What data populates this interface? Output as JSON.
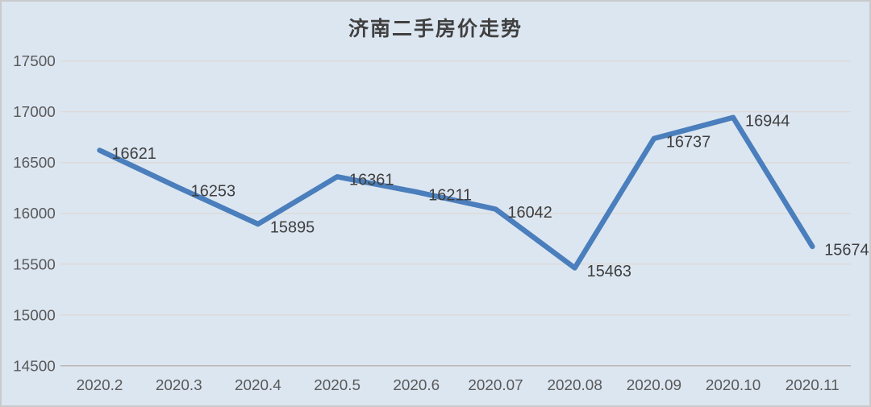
{
  "window": {
    "background_color": "#dce6f1",
    "border_color": "#c9cacc"
  },
  "chart_data": {
    "type": "line",
    "title": "济南二手房价走势",
    "categories": [
      "2020.2",
      "2020.3",
      "2020.4",
      "2020.5",
      "2020.6",
      "2020.07",
      "2020.08",
      "2020.09",
      "2020.10",
      "2020.11"
    ],
    "series": [
      {
        "name": "济南二手房价",
        "values": [
          16621,
          16253,
          15895,
          16361,
          16211,
          16042,
          15463,
          16737,
          16944,
          15674
        ]
      }
    ],
    "data_labels": [
      "16621",
      "16253",
      "15895",
      "16361",
      "16211",
      "16042",
      "15463",
      "16737",
      "16944",
      "15674"
    ],
    "xlabel": "",
    "ylabel": "",
    "ylim": [
      14500,
      17500
    ],
    "ytick_step": 500,
    "ytick_labels": [
      "14500",
      "15000",
      "15500",
      "16000",
      "16500",
      "17000",
      "17500"
    ],
    "grid": true,
    "legend_position": "none",
    "colors": {
      "line": "#4a7ebc",
      "title_text": "#404040",
      "data_label_text": "#3f3f3f",
      "axis_text": "#595959",
      "gridline": "#ddd9d2",
      "axis_line": "#b7b3ac"
    }
  }
}
